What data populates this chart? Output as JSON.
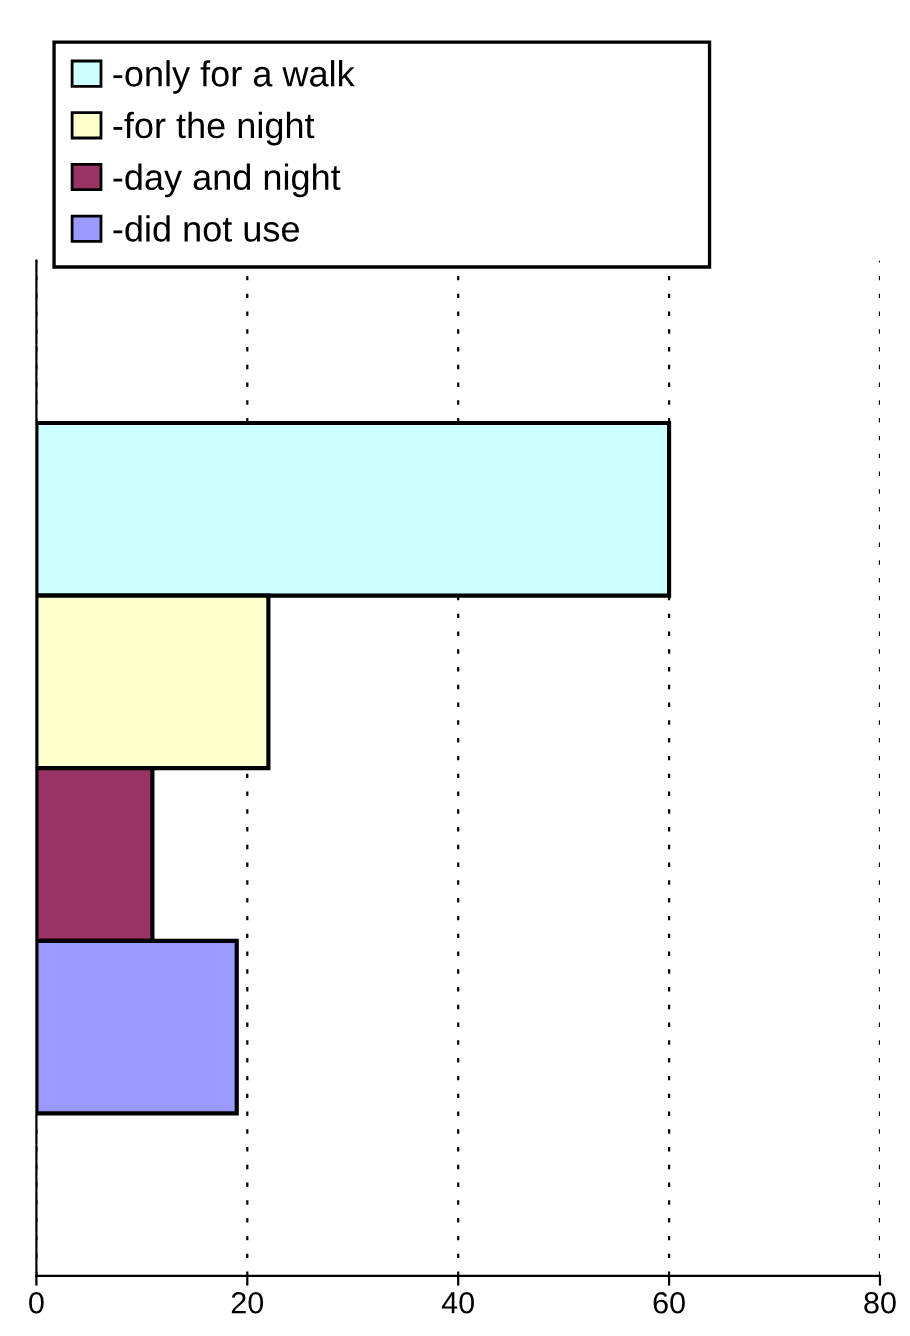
{
  "chart_data": {
    "type": "bar",
    "orientation": "horizontal",
    "categories": [
      null
    ],
    "series": [
      {
        "name": "-only for a walk",
        "color": "#ccffff",
        "values": [
          60
        ]
      },
      {
        "name": "-for the night",
        "color": "#ffffcc",
        "values": [
          22
        ]
      },
      {
        "name": "-day and night",
        "color": "#993366",
        "values": [
          11
        ]
      },
      {
        "name": "-did not use",
        "color": "#9999ff",
        "values": [
          19
        ]
      }
    ],
    "xlim": [
      0,
      80
    ],
    "xticks": [
      0,
      20,
      40,
      60,
      80
    ],
    "grid": "x",
    "legend": "top left",
    "tick_labels": "x"
  }
}
